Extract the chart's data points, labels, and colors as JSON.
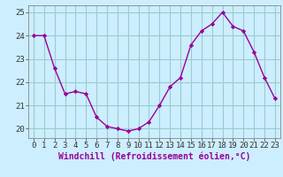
{
  "x": [
    0,
    1,
    2,
    3,
    4,
    5,
    6,
    7,
    8,
    9,
    10,
    11,
    12,
    13,
    14,
    15,
    16,
    17,
    18,
    19,
    20,
    21,
    22,
    23
  ],
  "y": [
    24.0,
    24.0,
    22.6,
    21.5,
    21.6,
    21.5,
    20.5,
    20.1,
    20.0,
    19.9,
    20.0,
    20.3,
    21.0,
    21.8,
    22.2,
    23.6,
    24.2,
    24.5,
    25.0,
    24.4,
    24.2,
    23.3,
    22.2,
    21.3
  ],
  "line_color": "#990099",
  "marker": "D",
  "marker_size": 2.2,
  "bg_color": "#cceeff",
  "grid_color": "#99cccc",
  "xlabel": "Windchill (Refroidissement éolien,°C)",
  "ylim": [
    19.6,
    25.3
  ],
  "xlim": [
    -0.5,
    23.5
  ],
  "yticks": [
    20,
    21,
    22,
    23,
    24,
    25
  ],
  "xticks": [
    0,
    1,
    2,
    3,
    4,
    5,
    6,
    7,
    8,
    9,
    10,
    11,
    12,
    13,
    14,
    15,
    16,
    17,
    18,
    19,
    20,
    21,
    22,
    23
  ],
  "tick_label_fontsize": 6.5,
  "xlabel_fontsize": 7.0,
  "line_width": 1.0
}
